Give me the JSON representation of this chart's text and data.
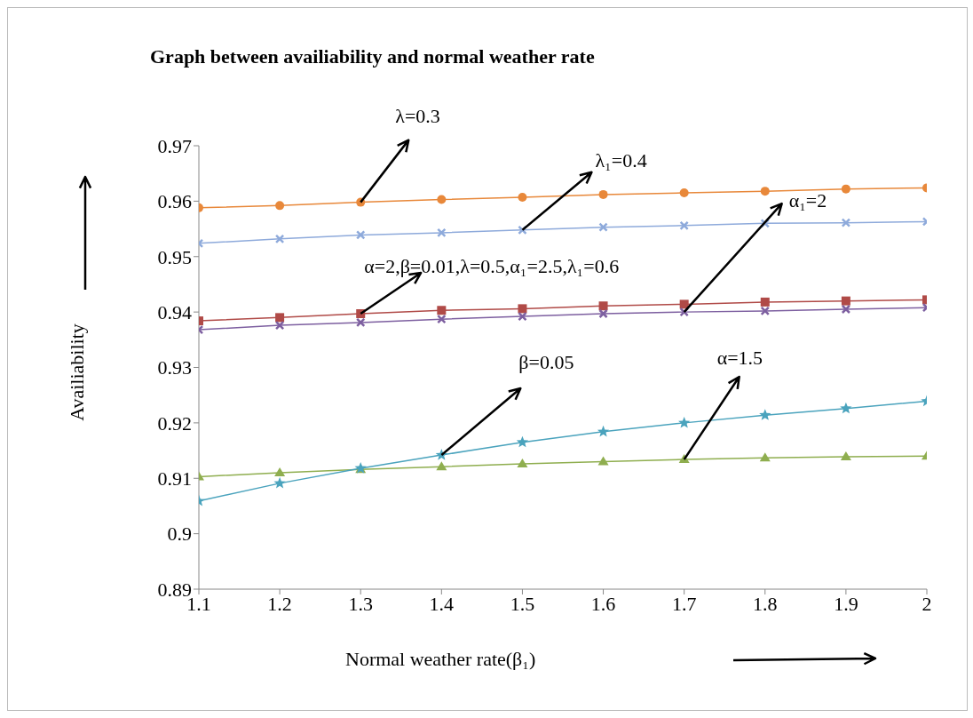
{
  "chart_data": {
    "type": "line",
    "title": "Graph between availiability and normal weather rate",
    "xlabel": "Normal weather rate(β₁)",
    "ylabel": "Availiability",
    "x": [
      1.1,
      1.2,
      1.3,
      1.4,
      1.5,
      1.6,
      1.7,
      1.8,
      1.9,
      2
    ],
    "series": [
      {
        "color": "#e8883a",
        "marker": "circle",
        "values": [
          0.9588,
          0.9592,
          0.9598,
          0.9603,
          0.9607,
          0.9612,
          0.9615,
          0.9618,
          0.9622,
          0.9624
        ]
      },
      {
        "color": "#8eaadb",
        "marker": "cross",
        "values": [
          0.9524,
          0.9532,
          0.9539,
          0.9543,
          0.9548,
          0.9553,
          0.9556,
          0.956,
          0.9561,
          0.9563
        ]
      },
      {
        "color": "#b04a47",
        "marker": "square",
        "values": [
          0.9384,
          0.939,
          0.9397,
          0.9403,
          0.9406,
          0.9411,
          0.9414,
          0.9418,
          0.942,
          0.9422
        ]
      },
      {
        "color": "#7d5fa0",
        "marker": "cross",
        "values": [
          0.9368,
          0.9376,
          0.9381,
          0.9387,
          0.9392,
          0.9397,
          0.94,
          0.9402,
          0.9405,
          0.9408
        ]
      },
      {
        "color": "#8fae4f",
        "marker": "triangle",
        "values": [
          0.9103,
          0.911,
          0.9116,
          0.9121,
          0.9126,
          0.913,
          0.9134,
          0.9137,
          0.9139,
          0.914
        ]
      },
      {
        "color": "#4aa3bd",
        "marker": "star",
        "values": [
          0.9059,
          0.9091,
          0.9118,
          0.9142,
          0.9165,
          0.9184,
          0.92,
          0.9214,
          0.9226,
          0.9239
        ]
      }
    ],
    "xlim": [
      1.1,
      2
    ],
    "xticks": [
      1.1,
      1.2,
      1.3,
      1.4,
      1.5,
      1.6,
      1.7,
      1.8,
      1.9,
      2
    ],
    "ylim": [
      0.89,
      0.97
    ],
    "yticks": [
      0.89,
      0.9,
      0.91,
      0.92,
      0.93,
      0.94,
      0.95,
      0.96,
      0.97
    ],
    "grid": false,
    "legend": false,
    "annotations": [
      {
        "text": "λ=0.3",
        "x": 1.3,
        "y": 0.9598
      },
      {
        "text": "λ₁=0.4",
        "x": 1.5,
        "y": 0.9548
      },
      {
        "text": "α=2,β=0.01,λ=0.5,α₁=2.5,λ₁=0.6",
        "x": 1.3,
        "y": 0.9397
      },
      {
        "text": "α₁=2",
        "x": 1.7,
        "y": 0.94
      },
      {
        "text": "β=0.05",
        "x": 1.4,
        "y": 0.9142
      },
      {
        "text": "α=1.5",
        "x": 1.7,
        "y": 0.9134
      }
    ]
  }
}
